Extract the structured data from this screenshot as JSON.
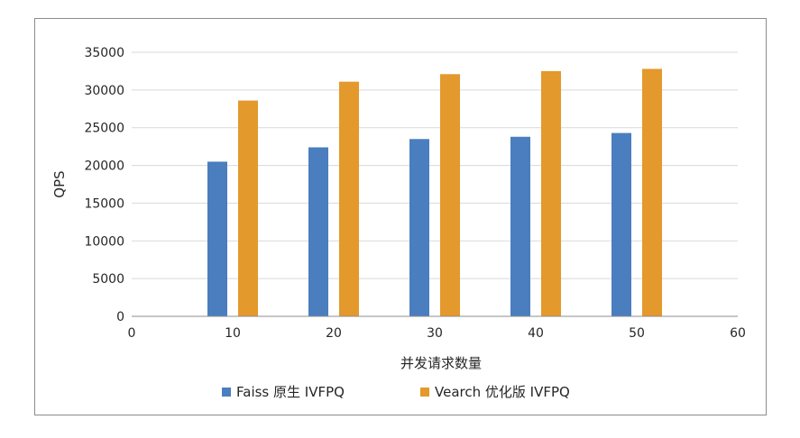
{
  "chart_data": {
    "type": "bar",
    "title": "",
    "xlabel": "并发请求数量",
    "ylabel": "QPS",
    "x": [
      10,
      20,
      30,
      40,
      50
    ],
    "xlim": [
      0,
      60
    ],
    "xticks": [
      0,
      10,
      20,
      30,
      40,
      50,
      60
    ],
    "ylim": [
      0,
      35000
    ],
    "yticks": [
      0,
      5000,
      10000,
      15000,
      20000,
      25000,
      30000,
      35000
    ],
    "grid": "horizontal",
    "legend_position": "bottom",
    "series": [
      {
        "name": "Faiss 原生 IVFPQ",
        "values": [
          20500,
          22400,
          23500,
          23800,
          24300
        ],
        "color": "#4a7ebf"
      },
      {
        "name": "Vearch 优化版 IVFPQ",
        "values": [
          28600,
          31100,
          32100,
          32500,
          32800
        ],
        "color": "#e3992c"
      }
    ]
  }
}
